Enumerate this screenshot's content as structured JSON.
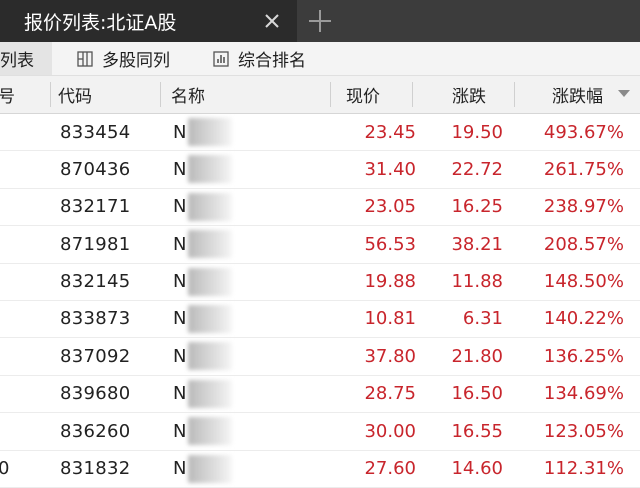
{
  "tabbar": {
    "active_tab": "报价列表:北证A股"
  },
  "toolbar": {
    "items": [
      "列表",
      "多股同列",
      "综合排名"
    ]
  },
  "table": {
    "columns": [
      "号",
      "代码",
      "名称",
      "现价",
      "涨跌",
      "涨跌幅"
    ],
    "rows": [
      {
        "idx": "",
        "code": "833454",
        "name": "N",
        "price": "23.45",
        "change": "19.50",
        "pct": "493.67%"
      },
      {
        "idx": "",
        "code": "870436",
        "name": "N",
        "price": "31.40",
        "change": "22.72",
        "pct": "261.75%"
      },
      {
        "idx": "",
        "code": "832171",
        "name": "N",
        "price": "23.05",
        "change": "16.25",
        "pct": "238.97%"
      },
      {
        "idx": "",
        "code": "871981",
        "name": "N",
        "price": "56.53",
        "change": "38.21",
        "pct": "208.57%"
      },
      {
        "idx": "",
        "code": "832145",
        "name": "N",
        "price": "19.88",
        "change": "11.88",
        "pct": "148.50%"
      },
      {
        "idx": "",
        "code": "833873",
        "name": "N",
        "price": "10.81",
        "change": "6.31",
        "pct": "140.22%"
      },
      {
        "idx": "",
        "code": "837092",
        "name": "N",
        "price": "37.80",
        "change": "21.80",
        "pct": "136.25%"
      },
      {
        "idx": "",
        "code": "839680",
        "name": "N",
        "price": "28.75",
        "change": "16.50",
        "pct": "134.69%"
      },
      {
        "idx": "",
        "code": "836260",
        "name": "N",
        "price": "30.00",
        "change": "16.55",
        "pct": "123.05%"
      },
      {
        "idx": "0",
        "code": "831832",
        "name": "N",
        "price": "27.60",
        "change": "14.60",
        "pct": "112.31%"
      }
    ]
  },
  "colors": {
    "up": "#c8252c",
    "tab_bg": "#2b2b2b"
  }
}
